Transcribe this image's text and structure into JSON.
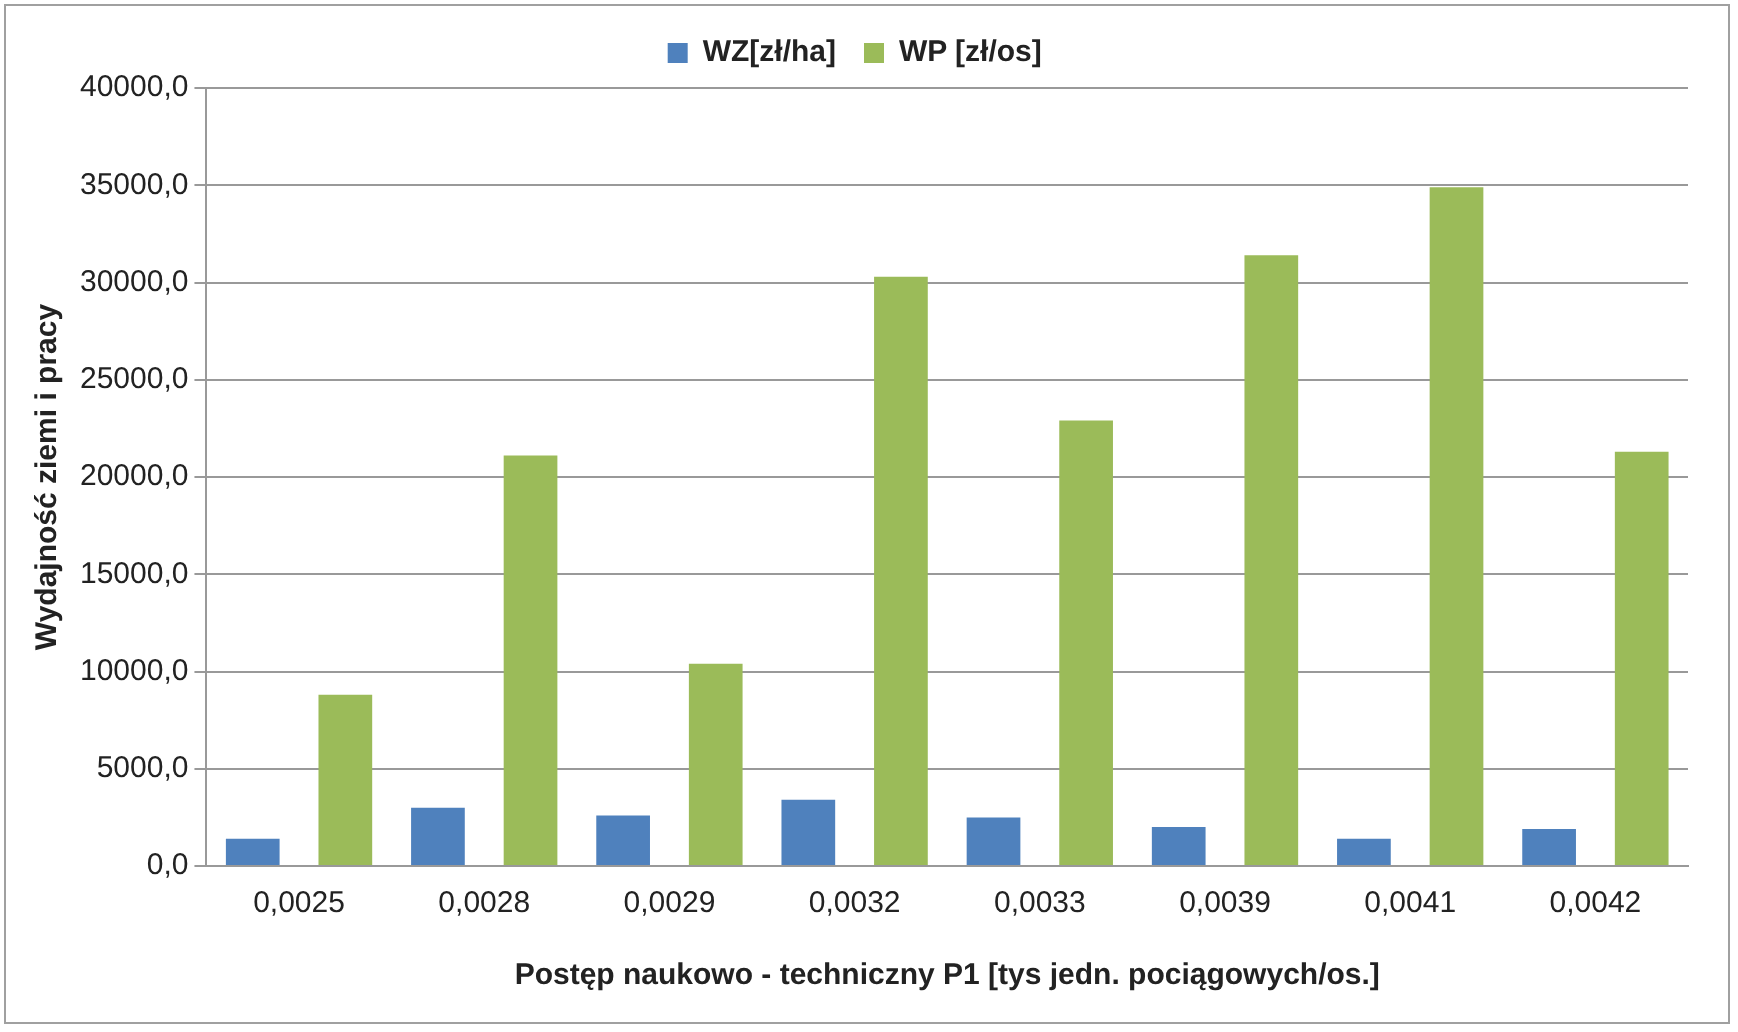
{
  "chart_data": {
    "type": "bar",
    "xlabel": "Postęp naukowo - techniczny P1 [tys jedn. pociągowych/os.]",
    "ylabel": "Wydajność ziemi i pracy",
    "categories": [
      "0,0025",
      "0,0028",
      "0,0029",
      "0,0032",
      "0,0033",
      "0,0039",
      "0,0041",
      "0,0042"
    ],
    "series": [
      {
        "name": "WZ[zł/ha]",
        "color": "#4f81bd",
        "values": [
          1400,
          3000,
          2600,
          3400,
          2500,
          2000,
          1400,
          1900
        ]
      },
      {
        "name": "WP [zł/os]",
        "color": "#9bbb59",
        "values": [
          8800,
          21100,
          10400,
          30300,
          22900,
          31400,
          34900,
          21300
        ]
      }
    ],
    "ylim": [
      0,
      40000
    ],
    "yticks": [
      {
        "value": 0,
        "label": "0,0"
      },
      {
        "value": 5000,
        "label": "5000,0"
      },
      {
        "value": 10000,
        "label": "10000,0"
      },
      {
        "value": 15000,
        "label": "15000,0"
      },
      {
        "value": 20000,
        "label": "20000,0"
      },
      {
        "value": 25000,
        "label": "25000,0"
      },
      {
        "value": 30000,
        "label": "30000,0"
      },
      {
        "value": 35000,
        "label": "35000,0"
      },
      {
        "value": 40000,
        "label": "40000,0"
      }
    ],
    "grid": "y",
    "legend": "top"
  }
}
